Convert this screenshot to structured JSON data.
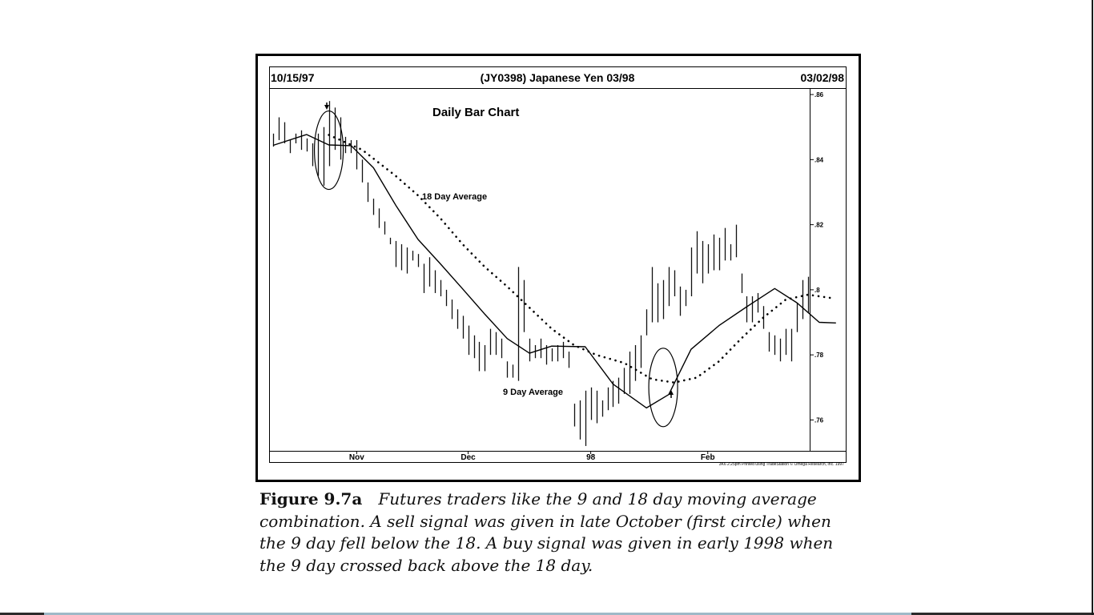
{
  "chart_data": {
    "type": "bar",
    "subtype": "ohlc-daily",
    "header_left": "10/15/97",
    "header_center": "(JY0398) Japanese Yen 03/98",
    "header_right": "03/02/98",
    "title": "Daily Bar Chart",
    "annotations": [
      "18 Day Average",
      "9 Day Average"
    ],
    "month_labels": [
      "Nov",
      "Dec",
      "98",
      "Feb"
    ],
    "credit": "3K6 2:25pm Printed using TradeStation © Omega Research, Inc. 1997",
    "y_ticks": [
      ".86",
      ".84",
      ".82",
      ".8",
      ".78",
      ".76"
    ],
    "ylim": [
      0.751,
      0.861
    ],
    "bars": [
      {
        "high": 0.848,
        "low": 0.844
      },
      {
        "high": 0.853,
        "low": 0.846
      },
      {
        "high": 0.8515,
        "low": 0.845
      },
      {
        "high": 0.846,
        "low": 0.842
      },
      {
        "high": 0.848,
        "low": 0.845
      },
      {
        "high": 0.849,
        "low": 0.843
      },
      {
        "high": 0.8465,
        "low": 0.8425
      },
      {
        "high": 0.845,
        "low": 0.838
      },
      {
        "high": 0.848,
        "low": 0.835
      },
      {
        "high": 0.85,
        "low": 0.832
      },
      {
        "high": 0.858,
        "low": 0.838
      },
      {
        "high": 0.856,
        "low": 0.843
      },
      {
        "high": 0.853,
        "low": 0.84
      },
      {
        "high": 0.847,
        "low": 0.842
      },
      {
        "high": 0.846,
        "low": 0.842
      },
      {
        "high": 0.846,
        "low": 0.837
      },
      {
        "high": 0.84,
        "low": 0.833
      },
      {
        "high": 0.833,
        "low": 0.827
      },
      {
        "high": 0.828,
        "low": 0.823
      },
      {
        "high": 0.825,
        "low": 0.819
      },
      {
        "high": 0.821,
        "low": 0.817
      },
      {
        "high": 0.816,
        "low": 0.814
      },
      {
        "high": 0.815,
        "low": 0.807
      },
      {
        "high": 0.814,
        "low": 0.806
      },
      {
        "high": 0.813,
        "low": 0.805
      },
      {
        "high": 0.812,
        "low": 0.809
      },
      {
        "high": 0.811,
        "low": 0.807
      },
      {
        "high": 0.808,
        "low": 0.799
      },
      {
        "high": 0.81,
        "low": 0.801
      },
      {
        "high": 0.806,
        "low": 0.799
      },
      {
        "high": 0.803,
        "low": 0.798
      },
      {
        "high": 0.8,
        "low": 0.795
      },
      {
        "high": 0.797,
        "low": 0.791
      },
      {
        "high": 0.794,
        "low": 0.788
      },
      {
        "high": 0.792,
        "low": 0.785
      },
      {
        "high": 0.789,
        "low": 0.78
      },
      {
        "high": 0.786,
        "low": 0.779
      },
      {
        "high": 0.784,
        "low": 0.775
      },
      {
        "high": 0.783,
        "low": 0.775
      },
      {
        "high": 0.788,
        "low": 0.78
      },
      {
        "high": 0.787,
        "low": 0.78
      },
      {
        "high": 0.785,
        "low": 0.779
      },
      {
        "high": 0.778,
        "low": 0.773
      },
      {
        "high": 0.777,
        "low": 0.773
      },
      {
        "high": 0.807,
        "low": 0.772
      },
      {
        "high": 0.803,
        "low": 0.787
      },
      {
        "high": 0.785,
        "low": 0.778
      },
      {
        "high": 0.783,
        "low": 0.779
      },
      {
        "high": 0.785,
        "low": 0.779
      },
      {
        "high": 0.783,
        "low": 0.777
      },
      {
        "high": 0.782,
        "low": 0.778
      },
      {
        "high": 0.783,
        "low": 0.778
      },
      {
        "high": 0.784,
        "low": 0.779
      },
      {
        "high": 0.781,
        "low": 0.776
      },
      {
        "high": 0.765,
        "low": 0.758
      },
      {
        "high": 0.766,
        "low": 0.754
      },
      {
        "high": 0.769,
        "low": 0.752
      },
      {
        "high": 0.77,
        "low": 0.76
      },
      {
        "high": 0.769,
        "low": 0.759
      },
      {
        "high": 0.766,
        "low": 0.761
      },
      {
        "high": 0.77,
        "low": 0.763
      },
      {
        "high": 0.772,
        "low": 0.764
      },
      {
        "high": 0.773,
        "low": 0.765
      },
      {
        "high": 0.776,
        "low": 0.768
      },
      {
        "high": 0.781,
        "low": 0.768
      },
      {
        "high": 0.783,
        "low": 0.772
      },
      {
        "high": 0.786,
        "low": 0.776
      },
      {
        "high": 0.794,
        "low": 0.786
      },
      {
        "high": 0.807,
        "low": 0.79
      },
      {
        "high": 0.802,
        "low": 0.79
      },
      {
        "high": 0.803,
        "low": 0.791
      },
      {
        "high": 0.807,
        "low": 0.795
      },
      {
        "high": 0.806,
        "low": 0.798
      },
      {
        "high": 0.801,
        "low": 0.792
      },
      {
        "high": 0.8,
        "low": 0.795
      },
      {
        "high": 0.813,
        "low": 0.798
      },
      {
        "high": 0.818,
        "low": 0.805
      },
      {
        "high": 0.815,
        "low": 0.802
      },
      {
        "high": 0.814,
        "low": 0.805
      },
      {
        "high": 0.817,
        "low": 0.806
      },
      {
        "high": 0.816,
        "low": 0.806
      },
      {
        "high": 0.819,
        "low": 0.809
      },
      {
        "high": 0.814,
        "low": 0.809
      },
      {
        "high": 0.82,
        "low": 0.81
      },
      {
        "high": 0.805,
        "low": 0.799
      },
      {
        "high": 0.798,
        "low": 0.79
      },
      {
        "high": 0.798,
        "low": 0.79
      },
      {
        "high": 0.799,
        "low": 0.793
      },
      {
        "high": 0.795,
        "low": 0.788
      },
      {
        "high": 0.787,
        "low": 0.781
      },
      {
        "high": 0.786,
        "low": 0.78
      },
      {
        "high": 0.785,
        "low": 0.778
      },
      {
        "high": 0.788,
        "low": 0.78
      },
      {
        "high": 0.788,
        "low": 0.778
      },
      {
        "high": 0.796,
        "low": 0.787
      },
      {
        "high": 0.803,
        "low": 0.791
      },
      {
        "high": 0.804,
        "low": 0.793
      }
    ],
    "series": [
      {
        "name": "9 Day Average",
        "style": "solid",
        "points": [
          [
            0,
            0.8444
          ],
          [
            6,
            0.8477
          ],
          [
            10,
            0.8445
          ],
          [
            14,
            0.8443
          ],
          [
            18,
            0.8375
          ],
          [
            22,
            0.826
          ],
          [
            26,
            0.8155
          ],
          [
            30,
            0.808
          ],
          [
            34,
            0.8003
          ],
          [
            38,
            0.7925
          ],
          [
            42,
            0.785
          ],
          [
            46,
            0.7805
          ],
          [
            50,
            0.7827
          ],
          [
            56,
            0.7825
          ],
          [
            61,
            0.771
          ],
          [
            67,
            0.7637
          ],
          [
            71,
            0.7678
          ],
          [
            75,
            0.7817
          ],
          [
            80,
            0.789
          ],
          [
            85,
            0.7948
          ],
          [
            90,
            0.8004
          ],
          [
            94,
            0.796
          ],
          [
            98,
            0.79
          ],
          [
            101,
            0.7898
          ]
        ]
      },
      {
        "name": "18 Day Average",
        "style": "dotted",
        "points": [
          [
            10,
            0.8476
          ],
          [
            16,
            0.843
          ],
          [
            22,
            0.835
          ],
          [
            26,
            0.829
          ],
          [
            30,
            0.822
          ],
          [
            34,
            0.814
          ],
          [
            38,
            0.807
          ],
          [
            42,
            0.801
          ],
          [
            46,
            0.7945
          ],
          [
            50,
            0.788
          ],
          [
            54,
            0.783
          ],
          [
            58,
            0.78
          ],
          [
            63,
            0.7775
          ],
          [
            68,
            0.7725
          ],
          [
            72,
            0.7715
          ],
          [
            76,
            0.773
          ],
          [
            80,
            0.778
          ],
          [
            84,
            0.785
          ],
          [
            88,
            0.7915
          ],
          [
            92,
            0.797
          ],
          [
            96,
            0.7985
          ],
          [
            100,
            0.7975
          ]
        ]
      }
    ],
    "signals": [
      {
        "type": "sell",
        "bar": 10,
        "price": 0.8429,
        "arrow": "down"
      },
      {
        "type": "buy",
        "bar": 70,
        "price": 0.77,
        "arrow": "up"
      }
    ]
  },
  "caption": {
    "label": "Figure 9.7a",
    "text": "Futures traders like the 9 and 18 day moving average combination. A sell signal was given in late October (first circle) when the 9 day fell below the 18. A buy signal was given in early 1998 when the 9 day crossed back above the 18 day."
  },
  "bottom_rule": {
    "segments": [
      {
        "color": "#2b2b2b",
        "width": 55
      },
      {
        "color": "#9fb9c7",
        "width": 1083
      },
      {
        "color": "#2b2b2b",
        "width": 228
      }
    ]
  }
}
